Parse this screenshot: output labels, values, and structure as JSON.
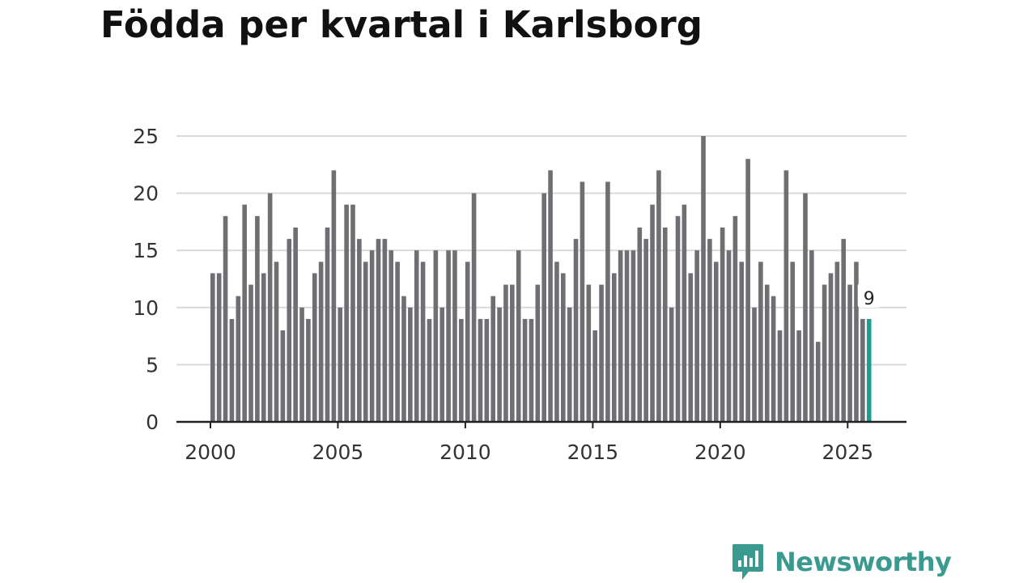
{
  "chart_data": {
    "type": "bar",
    "title": "Födda per kvartal i Karlsborg",
    "xlabel": "",
    "ylabel": "",
    "ylim": [
      0,
      25
    ],
    "yticks": [
      0,
      5,
      10,
      15,
      20,
      25
    ],
    "xticks": [
      "2000",
      "2005",
      "2010",
      "2015",
      "2020",
      "2025"
    ],
    "start_year": 2000,
    "periods_per_year": 4,
    "values": [
      13,
      13,
      18,
      9,
      11,
      19,
      12,
      18,
      13,
      20,
      14,
      8,
      16,
      17,
      10,
      9,
      13,
      14,
      17,
      22,
      10,
      19,
      19,
      16,
      14,
      15,
      16,
      16,
      15,
      14,
      11,
      10,
      15,
      14,
      9,
      15,
      10,
      15,
      15,
      9,
      14,
      20,
      9,
      9,
      11,
      10,
      12,
      12,
      15,
      9,
      9,
      12,
      20,
      22,
      14,
      13,
      10,
      16,
      21,
      12,
      8,
      12,
      21,
      13,
      15,
      15,
      15,
      17,
      16,
      19,
      22,
      17,
      10,
      18,
      19,
      13,
      15,
      25,
      16,
      14,
      17,
      15,
      18,
      14,
      23,
      10,
      14,
      12,
      11,
      8,
      22,
      14,
      8,
      20,
      15,
      7,
      12,
      13,
      14,
      16,
      12,
      14,
      9,
      9
    ],
    "highlight_index": 103,
    "highlight_label": "9",
    "colors": {
      "bar": "#6f6f73",
      "highlight": "#1a9e8f",
      "grid": "#d9d9d9",
      "axis": "#222222"
    }
  },
  "logo": {
    "text": "Newsworthy",
    "color": "#3a9a90"
  }
}
